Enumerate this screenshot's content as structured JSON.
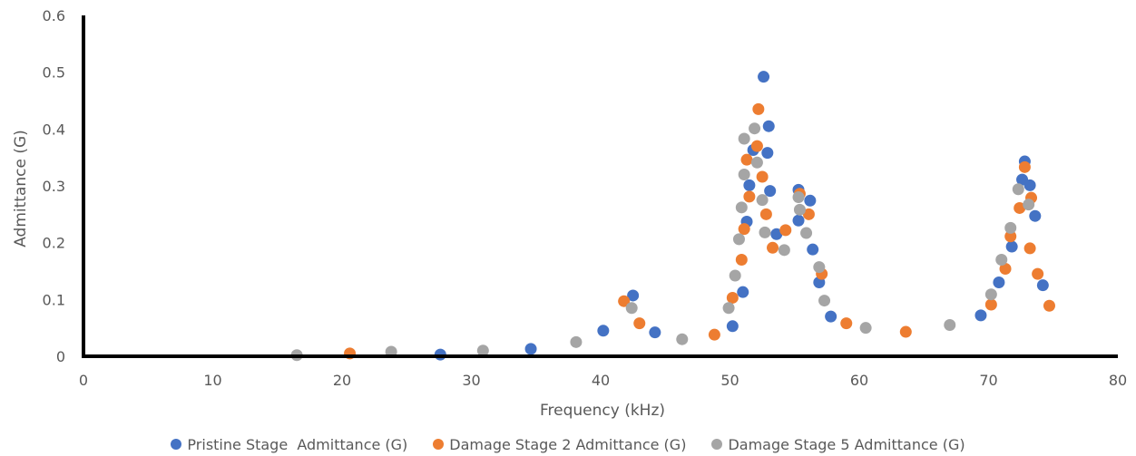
{
  "chart_data": {
    "type": "scatter",
    "title": "",
    "xlabel": "Frequency (kHz)",
    "ylabel": "Admittance (G)",
    "xlim": [
      0,
      80
    ],
    "ylim": [
      0,
      0.6
    ],
    "xticks": [
      "0",
      "10",
      "20",
      "30",
      "40",
      "50",
      "60",
      "70",
      "80"
    ],
    "yticks": [
      "0",
      "0.1",
      "0.2",
      "0.3",
      "0.4",
      "0.5",
      "0.6"
    ],
    "grid": false,
    "legend_position": "bottom",
    "series": [
      {
        "name": "Pristine Stage  Admittance (G)",
        "color": "#4472C4",
        "points": [
          [
            27.6,
            0.003
          ],
          [
            34.6,
            0.013
          ],
          [
            40.2,
            0.045
          ],
          [
            42.5,
            0.107
          ],
          [
            44.2,
            0.042
          ],
          [
            50.2,
            0.053
          ],
          [
            51.0,
            0.113
          ],
          [
            51.3,
            0.237
          ],
          [
            51.5,
            0.301
          ],
          [
            51.8,
            0.363
          ],
          [
            52.6,
            0.492
          ],
          [
            53.0,
            0.405
          ],
          [
            52.9,
            0.358
          ],
          [
            53.1,
            0.291
          ],
          [
            53.6,
            0.215
          ],
          [
            55.3,
            0.293
          ],
          [
            55.3,
            0.239
          ],
          [
            56.2,
            0.274
          ],
          [
            56.4,
            0.188
          ],
          [
            56.9,
            0.13
          ],
          [
            57.8,
            0.07
          ],
          [
            69.4,
            0.072
          ],
          [
            70.8,
            0.13
          ],
          [
            71.8,
            0.193
          ],
          [
            72.6,
            0.311
          ],
          [
            72.8,
            0.343
          ],
          [
            73.2,
            0.301
          ],
          [
            73.6,
            0.247
          ],
          [
            74.2,
            0.125
          ]
        ]
      },
      {
        "name": "Damage Stage 2 Admittance (G)",
        "color": "#ED7D31",
        "points": [
          [
            20.6,
            0.005
          ],
          [
            41.8,
            0.097
          ],
          [
            43.0,
            0.058
          ],
          [
            48.8,
            0.038
          ],
          [
            50.2,
            0.103
          ],
          [
            50.9,
            0.17
          ],
          [
            51.1,
            0.224
          ],
          [
            51.3,
            0.346
          ],
          [
            51.5,
            0.281
          ],
          [
            52.2,
            0.435
          ],
          [
            52.1,
            0.37
          ],
          [
            52.5,
            0.316
          ],
          [
            52.8,
            0.25
          ],
          [
            53.3,
            0.191
          ],
          [
            54.3,
            0.222
          ],
          [
            55.4,
            0.286
          ],
          [
            56.1,
            0.25
          ],
          [
            57.1,
            0.145
          ],
          [
            59.0,
            0.058
          ],
          [
            63.6,
            0.043
          ],
          [
            70.2,
            0.091
          ],
          [
            71.3,
            0.154
          ],
          [
            71.7,
            0.211
          ],
          [
            72.4,
            0.261
          ],
          [
            72.8,
            0.333
          ],
          [
            73.3,
            0.279
          ],
          [
            73.2,
            0.19
          ],
          [
            73.8,
            0.145
          ],
          [
            74.7,
            0.089
          ]
        ]
      },
      {
        "name": "Damage Stage 5 Admittance (G)",
        "color": "#A5A5A5",
        "points": [
          [
            16.5,
            0.002
          ],
          [
            23.8,
            0.008
          ],
          [
            30.9,
            0.01
          ],
          [
            38.1,
            0.025
          ],
          [
            42.4,
            0.085
          ],
          [
            46.3,
            0.03
          ],
          [
            49.9,
            0.085
          ],
          [
            50.4,
            0.142
          ],
          [
            50.7,
            0.206
          ],
          [
            50.9,
            0.262
          ],
          [
            51.1,
            0.383
          ],
          [
            51.1,
            0.32
          ],
          [
            51.9,
            0.401
          ],
          [
            52.1,
            0.341
          ],
          [
            52.5,
            0.275
          ],
          [
            52.7,
            0.218
          ],
          [
            54.2,
            0.187
          ],
          [
            55.3,
            0.28
          ],
          [
            55.4,
            0.258
          ],
          [
            55.9,
            0.217
          ],
          [
            56.9,
            0.157
          ],
          [
            57.3,
            0.098
          ],
          [
            60.5,
            0.05
          ],
          [
            67.0,
            0.055
          ],
          [
            70.2,
            0.109
          ],
          [
            71.0,
            0.17
          ],
          [
            71.7,
            0.226
          ],
          [
            72.3,
            0.294
          ],
          [
            73.1,
            0.267
          ]
        ]
      }
    ]
  }
}
